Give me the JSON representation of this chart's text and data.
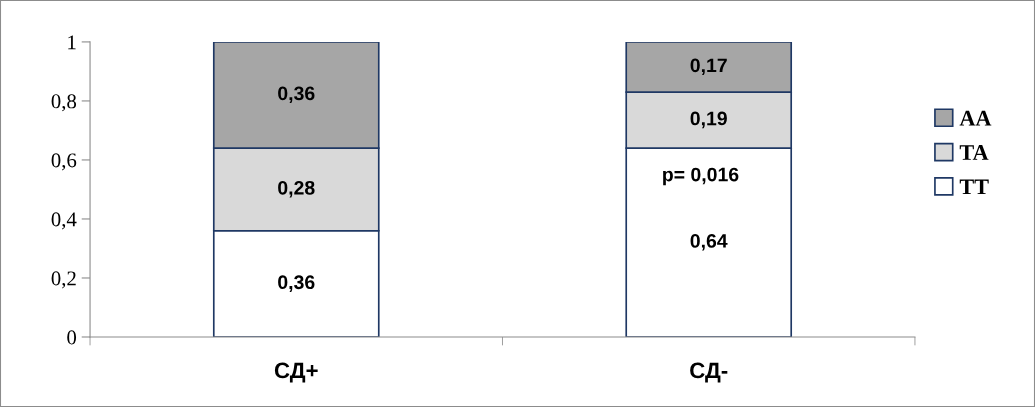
{
  "chart_data": {
    "type": "bar",
    "stacked": true,
    "categories": [
      "СД+",
      "СД-"
    ],
    "series": [
      {
        "name": "TT",
        "color": "#ffffff",
        "values": [
          0.36,
          0.64
        ],
        "value_labels": [
          "0,36",
          "0,64"
        ]
      },
      {
        "name": "TA",
        "color": "#d9d9d9",
        "values": [
          0.28,
          0.19
        ],
        "value_labels": [
          "0,28",
          "0,19"
        ]
      },
      {
        "name": "AA",
        "color": "#a6a6a6",
        "values": [
          0.36,
          0.17
        ],
        "value_labels": [
          "0,36",
          "0,17"
        ]
      }
    ],
    "ylim": [
      0,
      1
    ],
    "yticks": [
      0,
      {
        "value": 0.2,
        "label": "0,2"
      },
      {
        "value": 0.4,
        "label": "0,4"
      },
      {
        "value": 0.6,
        "label": "0,6"
      },
      {
        "value": 0.8,
        "label": "0,8"
      },
      1
    ],
    "annotations": [
      "p= 0,016"
    ],
    "legend": "right",
    "grid": false
  }
}
